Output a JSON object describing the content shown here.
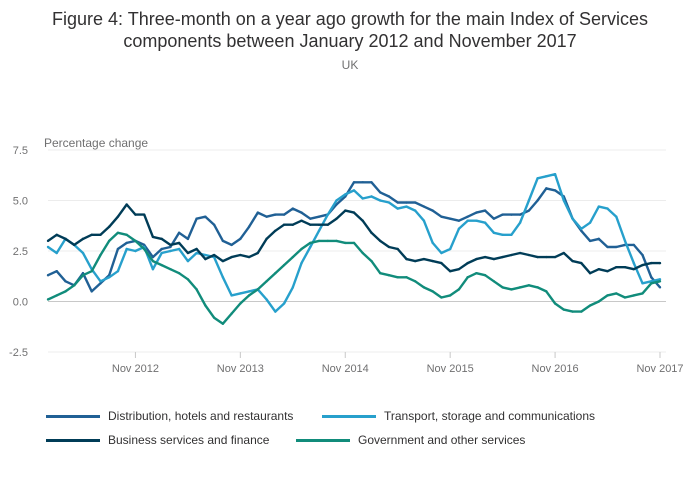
{
  "title_line1": "Figure 4: Three-month on a year ago growth for the main Index of Services",
  "title_line2": "components between January 2012 and November 2017",
  "subtitle": "UK",
  "chart_data": {
    "type": "line",
    "ylabel": "Percentage change",
    "ylim": [
      -2.5,
      7.5
    ],
    "yticks": [
      -2.5,
      0.0,
      2.5,
      5.0,
      7.5
    ],
    "ytick_labels": [
      "-2.5",
      "0.0",
      "2.5",
      "5.0",
      "7.5"
    ],
    "x_start": "Jan 2012",
    "x_tick_labels": [
      "Nov 2012",
      "Nov 2013",
      "Nov 2014",
      "Nov 2015",
      "Nov 2016",
      "Nov 2017"
    ],
    "x_tick_index": [
      10,
      22,
      34,
      46,
      58,
      70
    ],
    "grid": true,
    "legend_position": "bottom",
    "series": [
      {
        "name": "Distribution, hotels and restaurants",
        "color": "#206095",
        "values": [
          1.3,
          1.5,
          1.0,
          0.8,
          1.4,
          0.5,
          0.9,
          1.3,
          2.6,
          2.9,
          3.0,
          2.8,
          2.2,
          2.6,
          2.7,
          3.4,
          3.1,
          4.1,
          4.2,
          3.8,
          3.0,
          2.8,
          3.1,
          3.7,
          4.4,
          4.2,
          4.3,
          4.3,
          4.6,
          4.4,
          4.1,
          4.2,
          4.3,
          4.8,
          5.2,
          5.9,
          5.9,
          5.9,
          5.4,
          5.2,
          4.9,
          4.9,
          4.9,
          4.7,
          4.5,
          4.2,
          4.1,
          4.0,
          4.2,
          4.4,
          4.5,
          4.1,
          4.3,
          4.3,
          4.3,
          4.5,
          5.0,
          5.6,
          5.5,
          5.2,
          4.1,
          3.5,
          3.0,
          3.1,
          2.7,
          2.7,
          2.8,
          2.8,
          2.3,
          1.2,
          0.7
        ]
      },
      {
        "name": "Transport, storage and communications",
        "color": "#27a0cc",
        "values": [
          2.7,
          2.4,
          3.1,
          2.8,
          2.4,
          1.6,
          1.0,
          1.2,
          1.5,
          2.6,
          2.5,
          2.7,
          1.6,
          2.4,
          2.5,
          2.6,
          2.0,
          2.4,
          2.3,
          2.2,
          1.2,
          0.3,
          0.4,
          0.5,
          0.6,
          0.1,
          -0.5,
          -0.1,
          0.7,
          1.9,
          2.7,
          3.5,
          4.3,
          5.0,
          5.3,
          5.5,
          5.1,
          5.2,
          5.0,
          4.9,
          4.6,
          4.7,
          4.5,
          4.0,
          2.9,
          2.4,
          2.6,
          3.6,
          4.0,
          4.0,
          3.9,
          3.4,
          3.3,
          3.3,
          3.9,
          5.0,
          6.1,
          6.2,
          6.3,
          5.0,
          4.1,
          3.6,
          3.9,
          4.7,
          4.6,
          4.2,
          3.0,
          1.9,
          0.9,
          1.0,
          1.1
        ]
      },
      {
        "name": "Business services and finance",
        "color": "#003c57",
        "values": [
          3.0,
          3.3,
          3.1,
          2.8,
          3.1,
          3.3,
          3.3,
          3.7,
          4.2,
          4.8,
          4.3,
          4.3,
          3.2,
          3.1,
          2.8,
          2.9,
          2.4,
          2.6,
          2.1,
          2.3,
          2.0,
          2.2,
          2.3,
          2.2,
          2.4,
          3.1,
          3.5,
          3.8,
          3.8,
          4.0,
          3.8,
          3.8,
          3.8,
          4.1,
          4.5,
          4.4,
          4.0,
          3.4,
          3.0,
          2.7,
          2.6,
          2.1,
          2.0,
          2.1,
          2.0,
          1.9,
          1.5,
          1.6,
          1.9,
          2.1,
          2.2,
          2.1,
          2.2,
          2.3,
          2.4,
          2.3,
          2.2,
          2.2,
          2.2,
          2.4,
          2.0,
          1.9,
          1.4,
          1.6,
          1.5,
          1.7,
          1.7,
          1.6,
          1.8,
          1.9,
          1.9
        ]
      },
      {
        "name": "Government and other services",
        "color": "#118c7b",
        "values": [
          0.1,
          0.3,
          0.5,
          0.8,
          1.3,
          1.5,
          2.3,
          3.0,
          3.4,
          3.3,
          3.0,
          2.6,
          2.0,
          1.8,
          1.6,
          1.4,
          1.1,
          0.6,
          -0.2,
          -0.8,
          -1.1,
          -0.6,
          -0.1,
          0.3,
          0.6,
          1.0,
          1.4,
          1.8,
          2.2,
          2.6,
          2.9,
          3.0,
          3.0,
          3.0,
          2.9,
          2.9,
          2.4,
          2.0,
          1.4,
          1.3,
          1.2,
          1.2,
          1.0,
          0.7,
          0.5,
          0.2,
          0.3,
          0.6,
          1.2,
          1.4,
          1.3,
          1.0,
          0.7,
          0.6,
          0.7,
          0.8,
          0.7,
          0.5,
          -0.1,
          -0.4,
          -0.5,
          -0.5,
          -0.2,
          0.0,
          0.3,
          0.4,
          0.2,
          0.3,
          0.4,
          0.9,
          1.0
        ]
      }
    ]
  }
}
